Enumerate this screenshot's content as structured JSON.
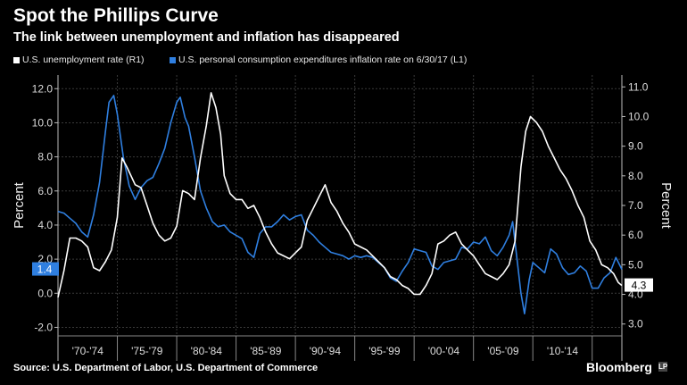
{
  "title": "Spot the Phillips Curve",
  "subtitle": "The link between unemployment and inflation has disappeared",
  "brand": "Bloomberg",
  "brand_mark": "LP",
  "source": "Source: U.S. Department of Labor, U.S. Department of Commerce",
  "colors": {
    "background": "#000000",
    "unemployment": "#ffffff",
    "inflation": "#2f7fe0",
    "grid": "#3a3a3a"
  },
  "chart_data": {
    "type": "line",
    "title": "Spot the Phillips Curve",
    "x_tick_labels": [
      "'70-'74",
      "'75-'79",
      "'80-'84",
      "'85-'89",
      "'90-'94",
      "'95-'99",
      "'00-'04",
      "'05-'09",
      "'10-'14"
    ],
    "x_range": [
      1970,
      2017.5
    ],
    "left_axis": {
      "label": "Percent",
      "range": [
        -2.5,
        12.8
      ],
      "ticks": [
        12.0,
        10.0,
        8.0,
        6.0,
        4.0,
        2.0,
        0.0,
        -2.0
      ],
      "tick_labels": [
        "12.0",
        "10.0",
        "8.0",
        "6.0",
        "4.0",
        "2.0",
        "0.0",
        "-2.0"
      ]
    },
    "right_axis": {
      "label": "Percent",
      "range": [
        2.6,
        11.4
      ],
      "ticks": [
        11.0,
        10.0,
        9.0,
        8.0,
        7.0,
        6.0,
        5.0,
        4.0,
        3.0
      ],
      "tick_labels": [
        "11.0",
        "10.0",
        "9.0",
        "8.0",
        "7.0",
        "6.0",
        "5.0",
        "4.0",
        "3.0"
      ]
    },
    "series": [
      {
        "name": "U.S. unemployment rate (R1)",
        "axis": "right",
        "last_value_label": "4.3",
        "x": [
          1970.0,
          1970.5,
          1971.0,
          1971.5,
          1972.0,
          1972.5,
          1973.0,
          1973.5,
          1974.0,
          1974.5,
          1975.0,
          1975.4,
          1975.8,
          1976.5,
          1977.0,
          1977.5,
          1978.0,
          1978.5,
          1979.0,
          1979.5,
          1980.0,
          1980.5,
          1981.0,
          1981.5,
          1982.0,
          1982.5,
          1982.9,
          1983.3,
          1983.7,
          1984.0,
          1984.5,
          1985.0,
          1985.5,
          1986.0,
          1986.5,
          1987.0,
          1987.5,
          1988.0,
          1988.5,
          1989.0,
          1989.5,
          1990.0,
          1990.5,
          1991.0,
          1991.5,
          1992.0,
          1992.5,
          1993.0,
          1993.5,
          1994.0,
          1994.5,
          1995.0,
          1995.5,
          1996.0,
          1996.5,
          1997.0,
          1997.5,
          1998.0,
          1998.5,
          1999.0,
          1999.5,
          2000.0,
          2000.5,
          2001.0,
          2001.5,
          2002.0,
          2002.5,
          2003.0,
          2003.5,
          2004.0,
          2004.5,
          2005.0,
          2005.5,
          2006.0,
          2006.5,
          2007.0,
          2007.5,
          2008.0,
          2008.5,
          2009.0,
          2009.4,
          2009.8,
          2010.3,
          2010.8,
          2011.3,
          2011.8,
          2012.3,
          2012.8,
          2013.3,
          2013.8,
          2014.3,
          2014.8,
          2015.3,
          2015.8,
          2016.3,
          2016.8,
          2017.2,
          2017.5
        ],
        "values": [
          3.9,
          4.8,
          5.9,
          5.9,
          5.8,
          5.6,
          4.9,
          4.8,
          5.1,
          5.5,
          6.6,
          8.6,
          8.3,
          7.7,
          7.6,
          7.0,
          6.4,
          6.0,
          5.8,
          5.9,
          6.3,
          7.5,
          7.4,
          7.2,
          8.6,
          9.7,
          10.8,
          10.3,
          9.4,
          8.0,
          7.4,
          7.2,
          7.2,
          6.9,
          7.0,
          6.6,
          6.1,
          5.7,
          5.4,
          5.3,
          5.2,
          5.4,
          5.6,
          6.5,
          6.9,
          7.3,
          7.7,
          7.1,
          6.8,
          6.4,
          6.1,
          5.7,
          5.6,
          5.5,
          5.3,
          5.1,
          4.9,
          4.6,
          4.5,
          4.3,
          4.2,
          4.0,
          4.0,
          4.3,
          4.7,
          5.7,
          5.8,
          6.0,
          6.1,
          5.7,
          5.5,
          5.3,
          5.0,
          4.7,
          4.6,
          4.5,
          4.7,
          5.0,
          5.8,
          8.3,
          9.5,
          10.0,
          9.8,
          9.5,
          9.0,
          8.6,
          8.2,
          7.9,
          7.5,
          7.0,
          6.6,
          5.8,
          5.5,
          5.0,
          4.9,
          4.7,
          4.4,
          4.3
        ]
      },
      {
        "name": "U.S. personal consumption expenditures inflation rate on 6/30/17 (L1)",
        "axis": "left",
        "last_value_label": "1.4",
        "x": [
          1970.0,
          1970.5,
          1971.0,
          1971.5,
          1972.0,
          1972.5,
          1973.0,
          1973.5,
          1974.0,
          1974.3,
          1974.7,
          1975.0,
          1975.5,
          1976.0,
          1976.5,
          1977.0,
          1977.5,
          1978.0,
          1978.5,
          1979.0,
          1979.5,
          1980.0,
          1980.3,
          1980.7,
          1981.0,
          1981.5,
          1982.0,
          1982.5,
          1983.0,
          1983.5,
          1984.0,
          1984.5,
          1985.0,
          1985.5,
          1986.0,
          1986.5,
          1987.0,
          1987.5,
          1988.0,
          1988.5,
          1989.0,
          1989.5,
          1990.0,
          1990.5,
          1991.0,
          1991.5,
          1992.0,
          1992.5,
          1993.0,
          1993.5,
          1994.0,
          1994.5,
          1995.0,
          1995.5,
          1996.0,
          1996.5,
          1997.0,
          1997.5,
          1998.0,
          1998.5,
          1999.0,
          1999.5,
          2000.0,
          2000.5,
          2001.0,
          2001.5,
          2002.0,
          2002.5,
          2003.0,
          2003.5,
          2004.0,
          2004.5,
          2005.0,
          2005.5,
          2006.0,
          2006.5,
          2007.0,
          2007.5,
          2008.0,
          2008.3,
          2008.6,
          2009.0,
          2009.3,
          2009.7,
          2010.0,
          2010.5,
          2011.0,
          2011.5,
          2012.0,
          2012.5,
          2013.0,
          2013.5,
          2014.0,
          2014.5,
          2015.0,
          2015.5,
          2016.0,
          2016.5,
          2017.0,
          2017.5
        ],
        "values": [
          4.8,
          4.7,
          4.4,
          4.1,
          3.6,
          3.3,
          4.6,
          6.5,
          9.5,
          11.2,
          11.6,
          10.5,
          8.0,
          6.3,
          5.5,
          6.2,
          6.6,
          6.8,
          7.6,
          8.5,
          10.0,
          11.2,
          11.5,
          10.3,
          9.8,
          8.0,
          6.0,
          5.0,
          4.2,
          3.9,
          4.0,
          3.6,
          3.4,
          3.2,
          2.4,
          2.1,
          3.5,
          3.9,
          3.9,
          4.2,
          4.6,
          4.3,
          4.5,
          4.6,
          3.7,
          3.4,
          3.0,
          2.7,
          2.4,
          2.3,
          2.2,
          2.0,
          2.2,
          2.1,
          2.2,
          2.1,
          1.8,
          1.5,
          0.9,
          0.7,
          1.3,
          1.8,
          2.6,
          2.5,
          2.4,
          1.6,
          1.4,
          1.8,
          1.9,
          2.0,
          2.7,
          2.6,
          3.0,
          2.9,
          3.3,
          2.5,
          2.2,
          2.7,
          3.4,
          4.2,
          2.4,
          0.0,
          -1.2,
          0.8,
          1.8,
          1.5,
          1.2,
          2.6,
          2.3,
          1.5,
          1.1,
          1.2,
          1.6,
          1.3,
          0.3,
          0.3,
          0.9,
          1.2,
          2.1,
          1.4
        ]
      }
    ]
  }
}
